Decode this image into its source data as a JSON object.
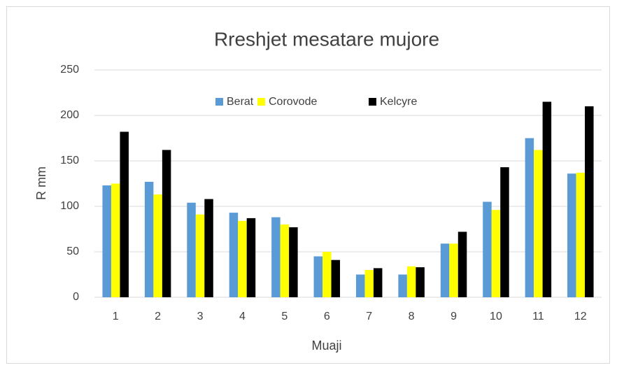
{
  "chart_data": {
    "type": "bar",
    "title": "Rreshjet mesatare mujore",
    "x_label": "Muaji",
    "y_label": "R mm",
    "categories": [
      "1",
      "2",
      "3",
      "4",
      "5",
      "6",
      "7",
      "8",
      "9",
      "10",
      "11",
      "12"
    ],
    "series": [
      {
        "name": "Berat",
        "color": "#5b9bd5",
        "values": [
          123,
          127,
          104,
          93,
          88,
          45,
          25,
          25,
          59,
          105,
          175,
          136
        ]
      },
      {
        "name": "Corovode",
        "color": "#ffff00",
        "values": [
          125,
          113,
          91,
          84,
          80,
          50,
          30,
          34,
          59,
          96,
          162,
          137
        ]
      },
      {
        "name": "Kelcyre",
        "color": "#000000",
        "values": [
          182,
          162,
          108,
          87,
          77,
          41,
          32,
          33,
          72,
          143,
          215,
          210
        ]
      }
    ],
    "ylim": [
      0,
      250
    ],
    "yticks": [
      0,
      50,
      100,
      150,
      200,
      250
    ],
    "grid": true,
    "legend": "top"
  }
}
